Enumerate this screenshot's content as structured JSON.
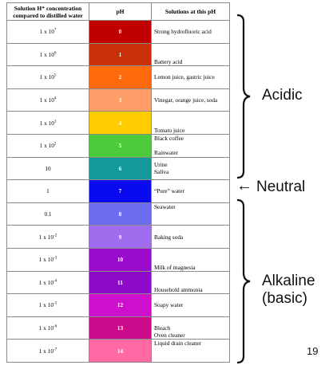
{
  "table": {
    "headers": {
      "concentration_line1": "Solution H⁺ concentration",
      "concentration_line2": "compared to distilled water",
      "ph": "pH",
      "solutions": "Solutions at this pH"
    },
    "rows": [
      {
        "base": "1 x 10",
        "exp": "7",
        "ph": "0",
        "color": "#c00000",
        "solutions": "Strong hydrofluoric acid",
        "align": "middle"
      },
      {
        "base": "1 x 10",
        "exp": "6",
        "ph": "1",
        "color": "#c8300a",
        "solutions": "Battery acid",
        "align": "bottom"
      },
      {
        "base": "1 x 10",
        "exp": "5",
        "ph": "2",
        "color": "#ff6a0c",
        "solutions": "Lemon juice, gastric juice",
        "align": "middle"
      },
      {
        "base": "1 x 10",
        "exp": "4",
        "ph": "3",
        "color": "#ff9e68",
        "solutions": "Vinegar, orange juice, soda",
        "align": "middle"
      },
      {
        "base": "1 x 10",
        "exp": "3",
        "ph": "4",
        "color": "#ffcc00",
        "solutions": "Tomato juice",
        "align": "bottom"
      },
      {
        "base": "1 x 10",
        "exp": "2",
        "ph": "5",
        "color": "#4ccc3c",
        "solutions": "Black coffee\n\nRainwater",
        "align": "middle"
      },
      {
        "base": "10",
        "exp": "",
        "ph": "6",
        "color": "#14999a",
        "solutions": "Urine\nSaliva",
        "align": "middle"
      },
      {
        "base": "1",
        "exp": "",
        "ph": "7",
        "color": "#0a0aee",
        "solutions": "“Pure” water",
        "align": "middle"
      },
      {
        "base": "0.1",
        "exp": "",
        "ph": "8",
        "color": "#6c6cf0",
        "solutions": "Seawater",
        "align": "top"
      },
      {
        "base": "1 x 10",
        "exp": "-2",
        "ph": "9",
        "color": "#9e6cec",
        "solutions": "Baking soda",
        "align": "middle"
      },
      {
        "base": "1 x 10",
        "exp": "-3",
        "ph": "10",
        "color": "#9a0aca",
        "solutions": "Milk of magnesia",
        "align": "bottom"
      },
      {
        "base": "1 x 10",
        "exp": "-4",
        "ph": "11",
        "color": "#8c0ac8",
        "solutions": "Household ammonia",
        "align": "bottom"
      },
      {
        "base": "1 x 10",
        "exp": "-5",
        "ph": "12",
        "color": "#cc10cc",
        "solutions": "Soapy water",
        "align": "middle"
      },
      {
        "base": "1 x 10",
        "exp": "-6",
        "ph": "13",
        "color": "#cc0a8c",
        "solutions": "Bleach\nOven cleaner",
        "align": "bottom"
      },
      {
        "base": "1 x 10",
        "exp": "-7",
        "ph": "14",
        "color": "#ff6aa4",
        "solutions": "Liquid drain cleaner",
        "align": "top"
      }
    ]
  },
  "labels": {
    "acidic": "Acidic",
    "neutral": "Neutral",
    "neutral_arrow": "←",
    "alkaline_line1": "Alkaline",
    "alkaline_line2": "(basic)"
  },
  "page_number": "19"
}
